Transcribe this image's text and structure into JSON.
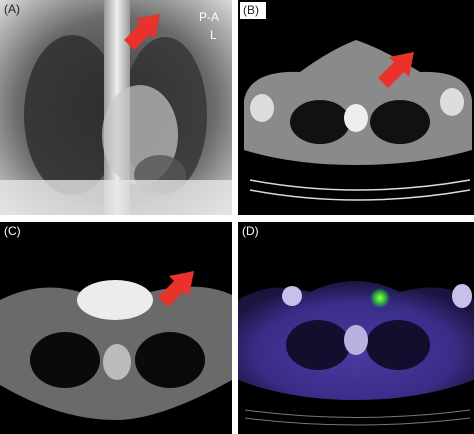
{
  "panels": [
    {
      "label": "(A)",
      "markers": [
        "P-A",
        "L"
      ]
    },
    {
      "label": "(B)"
    },
    {
      "label": "(C)"
    },
    {
      "label": "(D)"
    }
  ]
}
